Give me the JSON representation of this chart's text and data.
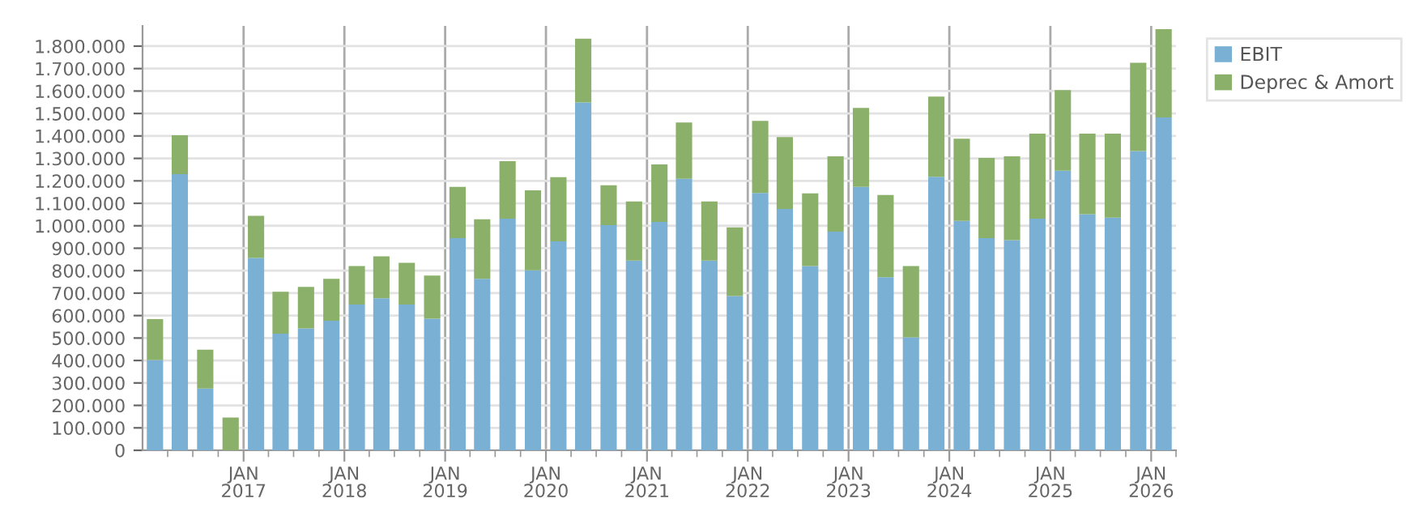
{
  "chart_data": {
    "type": "bar",
    "stacked": true,
    "x": [
      "2016-02-15",
      "2016-05-15",
      "2016-08-15",
      "2016-11-15",
      "2017-02-15",
      "2017-05-15",
      "2017-08-15",
      "2017-11-15",
      "2018-02-15",
      "2018-05-15",
      "2018-08-15",
      "2018-11-15",
      "2019-02-15",
      "2019-05-15",
      "2019-08-15",
      "2019-11-15",
      "2020-02-15",
      "2020-05-15",
      "2020-08-15",
      "2020-11-15",
      "2021-02-15",
      "2021-05-15",
      "2021-08-15",
      "2021-11-15",
      "2022-02-15",
      "2022-05-15",
      "2022-08-15",
      "2022-11-15",
      "2023-02-15",
      "2023-05-15",
      "2023-08-15",
      "2023-11-15",
      "2024-02-15",
      "2024-05-15",
      "2024-08-15",
      "2024-11-15",
      "2025-02-15",
      "2025-05-15",
      "2025-08-15",
      "2025-11-15",
      "2026-02-15"
    ],
    "series": [
      {
        "name": "EBIT",
        "color": "#7ab0d4",
        "values": [
          402000,
          1230000,
          275000,
          0,
          857000,
          519000,
          543000,
          577000,
          649000,
          677000,
          649000,
          586000,
          945000,
          764000,
          1032000,
          802000,
          931000,
          1549000,
          1003000,
          845000,
          1017000,
          1209000,
          845000,
          687000,
          1146000,
          1075000,
          821000,
          974000,
          1173000,
          771000,
          503000,
          1218000,
          1022000,
          945000,
          936000,
          1032000,
          1245000,
          1051000,
          1036000,
          1333000,
          1482000
        ]
      },
      {
        "name": "Deprec & Amort",
        "color": "#8ab06a",
        "values": [
          182000,
          173000,
          173000,
          146000,
          187000,
          187000,
          185000,
          187000,
          172000,
          187000,
          186000,
          192000,
          228000,
          265000,
          256000,
          356000,
          285000,
          284000,
          177000,
          263000,
          256000,
          251000,
          263000,
          306000,
          321000,
          320000,
          323000,
          335000,
          352000,
          366000,
          318000,
          357000,
          366000,
          357000,
          373000,
          378000,
          359000,
          359000,
          374000,
          393000,
          394000
        ]
      }
    ],
    "xlim": [
      "2016-01-01",
      "2026-04-01"
    ],
    "xticks": [
      {
        "value": "2017-01-01",
        "label": "JAN\n2017"
      },
      {
        "value": "2018-01-01",
        "label": "JAN\n2018"
      },
      {
        "value": "2019-01-01",
        "label": "JAN\n2019"
      },
      {
        "value": "2020-01-01",
        "label": "JAN\n2020"
      },
      {
        "value": "2021-01-01",
        "label": "JAN\n2021"
      },
      {
        "value": "2022-01-01",
        "label": "JAN\n2022"
      },
      {
        "value": "2023-01-01",
        "label": "JAN\n2023"
      },
      {
        "value": "2024-01-01",
        "label": "JAN\n2024"
      },
      {
        "value": "2025-01-01",
        "label": "JAN\n2025"
      },
      {
        "value": "2026-01-01",
        "label": "JAN\n2026"
      }
    ],
    "ylim": [
      0,
      1890000
    ],
    "yticks": [
      0,
      {
        "value": 100000,
        "label": "100.000"
      },
      {
        "value": 200000,
        "label": "200.000"
      },
      {
        "value": 300000,
        "label": "300.000"
      },
      {
        "value": 400000,
        "label": "400.000"
      },
      {
        "value": 500000,
        "label": "500.000"
      },
      {
        "value": 600000,
        "label": "600.000"
      },
      {
        "value": 700000,
        "label": "700.000"
      },
      {
        "value": 800000,
        "label": "800.000"
      },
      {
        "value": 900000,
        "label": "900.000"
      },
      {
        "value": 1000000,
        "label": "1.000.000"
      },
      {
        "value": 1100000,
        "label": "1.100.000"
      },
      {
        "value": 1200000,
        "label": "1.200.000"
      },
      {
        "value": 1300000,
        "label": "1.300.000"
      },
      {
        "value": 1400000,
        "label": "1.400.000"
      },
      {
        "value": 1500000,
        "label": "1.500.000"
      },
      {
        "value": 1600000,
        "label": "1.600.000"
      },
      {
        "value": 1700000,
        "label": "1.700.000"
      },
      {
        "value": 1800000,
        "label": "1.800.000"
      }
    ],
    "grid": true,
    "legend": "top right"
  }
}
